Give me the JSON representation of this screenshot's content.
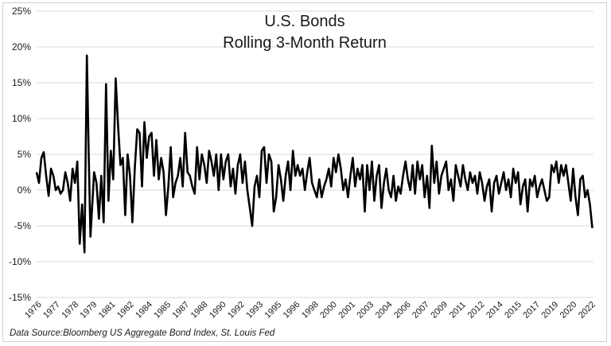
{
  "chart_data": {
    "type": "line",
    "title": "U.S. Bonds",
    "subtitle": "Rolling 3-Month Return",
    "xlabel": "",
    "ylabel": "",
    "ylim": [
      -15,
      25
    ],
    "xlim": [
      1976,
      2022.5
    ],
    "y_ticks": [
      -15,
      -10,
      -5,
      0,
      5,
      10,
      15,
      20,
      25
    ],
    "y_tick_labels": [
      "-15%",
      "-10%",
      "-5%",
      "0%",
      "5%",
      "10%",
      "15%",
      "20%",
      "25%"
    ],
    "x_tick_labels": [
      "1976",
      "1977",
      "1978",
      "1979",
      "1981",
      "1982",
      "1984",
      "1985",
      "1987",
      "1988",
      "1990",
      "1992",
      "1993",
      "1995",
      "1996",
      "1998",
      "2000",
      "2001",
      "2003",
      "2004",
      "2006",
      "2007",
      "2009",
      "2011",
      "2012",
      "2014",
      "2015",
      "2017",
      "2019",
      "2020",
      "2022"
    ],
    "grid": true,
    "legend": "none",
    "series": [
      {
        "color": "#000000",
        "x": [
          1976.0,
          1976.2,
          1976.4,
          1976.6,
          1976.8,
          1977.0,
          1977.2,
          1977.4,
          1977.6,
          1977.8,
          1978.0,
          1978.2,
          1978.4,
          1978.6,
          1978.8,
          1979.0,
          1979.2,
          1979.4,
          1979.6,
          1979.8,
          1980.0,
          1980.2,
          1980.35,
          1980.5,
          1980.65,
          1980.8,
          1981.0,
          1981.2,
          1981.4,
          1981.6,
          1981.8,
          1982.0,
          1982.2,
          1982.4,
          1982.6,
          1982.8,
          1983.0,
          1983.2,
          1983.4,
          1983.6,
          1983.8,
          1984.0,
          1984.2,
          1984.4,
          1984.6,
          1984.8,
          1985.0,
          1985.2,
          1985.4,
          1985.6,
          1985.8,
          1986.0,
          1986.2,
          1986.4,
          1986.6,
          1986.8,
          1987.0,
          1987.2,
          1987.4,
          1987.6,
          1987.8,
          1988.0,
          1988.2,
          1988.4,
          1988.6,
          1988.8,
          1989.0,
          1989.2,
          1989.4,
          1989.6,
          1989.8,
          1990.0,
          1990.2,
          1990.4,
          1990.6,
          1990.8,
          1991.0,
          1991.2,
          1991.4,
          1991.6,
          1991.8,
          1992.0,
          1992.2,
          1992.4,
          1992.6,
          1992.8,
          1993.0,
          1993.2,
          1993.4,
          1993.6,
          1993.8,
          1994.0,
          1994.2,
          1994.4,
          1994.6,
          1994.8,
          1995.0,
          1995.2,
          1995.4,
          1995.6,
          1995.8,
          1996.0,
          1996.2,
          1996.4,
          1996.6,
          1996.8,
          1997.0,
          1997.2,
          1997.4,
          1997.6,
          1997.8,
          1998.0,
          1998.2,
          1998.4,
          1998.6,
          1998.8,
          1999.0,
          1999.2,
          1999.4,
          1999.6,
          1999.8,
          2000.0,
          2000.2,
          2000.4,
          2000.6,
          2000.8,
          2001.0,
          2001.2,
          2001.4,
          2001.6,
          2001.8,
          2002.0,
          2002.2,
          2002.4,
          2002.6,
          2002.8,
          2003.0,
          2003.2,
          2003.4,
          2003.6,
          2003.8,
          2004.0,
          2004.2,
          2004.4,
          2004.6,
          2004.8,
          2005.0,
          2005.2,
          2005.4,
          2005.6,
          2005.8,
          2006.0,
          2006.2,
          2006.4,
          2006.6,
          2006.8,
          2007.0,
          2007.2,
          2007.4,
          2007.6,
          2007.8,
          2008.0,
          2008.2,
          2008.4,
          2008.6,
          2008.8,
          2009.0,
          2009.2,
          2009.4,
          2009.6,
          2009.8,
          2010.0,
          2010.2,
          2010.4,
          2010.6,
          2010.8,
          2011.0,
          2011.2,
          2011.4,
          2011.6,
          2011.8,
          2012.0,
          2012.2,
          2012.4,
          2012.6,
          2012.8,
          2013.0,
          2013.2,
          2013.4,
          2013.6,
          2013.8,
          2014.0,
          2014.2,
          2014.4,
          2014.6,
          2014.8,
          2015.0,
          2015.2,
          2015.4,
          2015.6,
          2015.8,
          2016.0,
          2016.2,
          2016.4,
          2016.6,
          2016.8,
          2017.0,
          2017.2,
          2017.4,
          2017.6,
          2017.8,
          2018.0,
          2018.2,
          2018.4,
          2018.6,
          2018.8,
          2019.0,
          2019.2,
          2019.4,
          2019.6,
          2019.8,
          2020.0,
          2020.2,
          2020.4,
          2020.6,
          2020.8,
          2021.0,
          2021.2,
          2021.4,
          2021.6,
          2021.8,
          2022.0,
          2022.2,
          2022.4
        ],
        "values": [
          2.5,
          1.0,
          4.5,
          5.3,
          2.0,
          -0.8,
          3.0,
          2.0,
          0.0,
          0.5,
          -0.5,
          0.0,
          2.5,
          1.0,
          -1.5,
          3.0,
          1.0,
          4.0,
          -7.5,
          -2.0,
          -8.7,
          18.8,
          5.0,
          -6.5,
          -2.0,
          2.5,
          1.0,
          -4.0,
          2.0,
          -4.5,
          14.8,
          -1.5,
          5.5,
          1.5,
          15.6,
          9.0,
          3.5,
          4.5,
          -3.5,
          5.0,
          2.0,
          -4.5,
          3.0,
          8.5,
          8.0,
          0.5,
          9.5,
          4.5,
          7.5,
          8.0,
          2.0,
          7.0,
          1.5,
          4.5,
          2.5,
          -3.5,
          0.5,
          6.0,
          -1.0,
          1.0,
          2.0,
          4.5,
          0.5,
          8.0,
          2.5,
          2.0,
          0.5,
          -0.5,
          6.0,
          1.5,
          5.0,
          3.5,
          1.0,
          5.5,
          4.0,
          2.0,
          5.0,
          0.0,
          5.0,
          1.5,
          4.0,
          5.0,
          0.5,
          3.0,
          -0.5,
          3.5,
          5.0,
          1.0,
          4.0,
          0.0,
          -2.5,
          -5.0,
          0.5,
          2.0,
          -1.0,
          5.5,
          6.0,
          1.0,
          5.0,
          4.0,
          -3.0,
          -1.0,
          3.5,
          1.5,
          -1.5,
          2.0,
          4.0,
          0.0,
          5.5,
          2.0,
          3.5,
          2.0,
          3.0,
          0.0,
          2.5,
          4.5,
          1.0,
          0.0,
          -1.0,
          1.5,
          -1.0,
          0.5,
          1.5,
          3.0,
          0.5,
          4.5,
          2.5,
          5.0,
          3.0,
          0.0,
          1.5,
          -1.0,
          2.0,
          4.5,
          0.5,
          3.0,
          1.5,
          3.5,
          -3.0,
          3.5,
          0.0,
          4.0,
          -1.5,
          2.0,
          3.5,
          -2.5,
          1.0,
          3.0,
          0.0,
          -1.0,
          2.0,
          -1.5,
          0.5,
          -0.5,
          2.0,
          4.0,
          1.5,
          0.0,
          3.5,
          -0.5,
          4.0,
          1.5,
          3.5,
          -1.0,
          2.0,
          -2.5,
          6.2,
          1.0,
          4.0,
          -0.5,
          2.0,
          3.0,
          4.0,
          0.0,
          1.5,
          -1.5,
          3.5,
          2.0,
          0.5,
          3.5,
          1.5,
          0.0,
          2.5,
          1.0,
          2.0,
          -0.5,
          2.5,
          1.0,
          -1.5,
          0.5,
          1.5,
          -3.0,
          1.0,
          2.0,
          -0.5,
          1.0,
          2.5,
          0.0,
          1.5,
          -1.0,
          3.0,
          1.0,
          2.5,
          -2.0,
          0.5,
          1.5,
          -3.0,
          1.5,
          0.5,
          2.0,
          -1.0,
          0.5,
          1.5,
          0.0,
          -1.5,
          -1.0,
          3.5,
          2.5,
          4.0,
          1.0,
          3.5,
          2.0,
          3.5,
          1.0,
          -1.5,
          3.0,
          -1.0,
          -3.5,
          1.5,
          2.0,
          -1.0,
          0.0,
          -2.0,
          -5.3
        ]
      }
    ]
  },
  "source_note": "Data Source:Bloomberg US Aggregate Bond Index, St. Louis Fed"
}
